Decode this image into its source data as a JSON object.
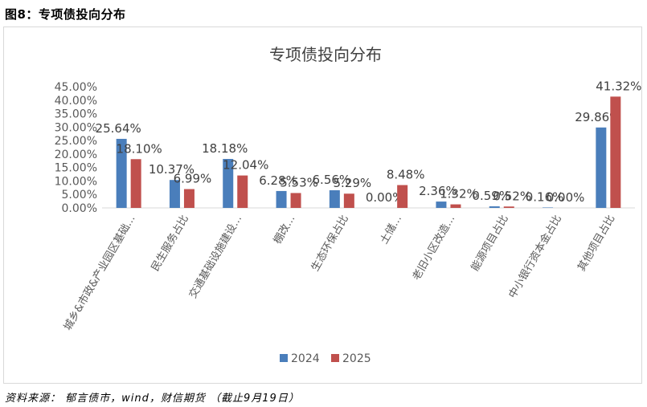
{
  "figure_title": "图8：专项债投向分布",
  "source_note": "资料来源： 郁言债市，wind，财信期货 （截止9月19日）",
  "colors": {
    "s2024": "#4a7ebb",
    "s2025": "#c0504d",
    "axis": "#d9d9d9",
    "text": "#595959"
  },
  "chart_data": {
    "type": "bar",
    "title": "专项债投向分布",
    "categories": [
      "城乡&市政&产业园区基础…",
      "民生服务占比",
      "交通基础设施建设…",
      "棚改…",
      "生态环保占比",
      "土储…",
      "老旧小区改造…",
      "能源项目占比",
      "中小银行资本金占比",
      "其他项目占比"
    ],
    "series": [
      {
        "name": "2024",
        "values": [
          25.64,
          10.37,
          18.18,
          6.28,
          6.56,
          0.0,
          2.36,
          0.59,
          0.16,
          29.86
        ],
        "labels": [
          "25.64%",
          "10.37%",
          "18.18%",
          "6.28%",
          "6.56%",
          "0.00%",
          "2.36%",
          "0.59%",
          "0.16%",
          "29.86%"
        ]
      },
      {
        "name": "2025",
        "values": [
          18.1,
          6.99,
          12.04,
          5.53,
          5.29,
          8.48,
          1.32,
          0.52,
          0.0,
          41.32
        ],
        "labels": [
          "18.10%",
          "6.99%",
          "12.04%",
          "5.53%",
          "5.29%",
          "8.48%",
          "1.32%",
          "0.52%",
          "0.00%",
          "41.32%"
        ]
      }
    ],
    "yticks": [
      "0.00%",
      "5.00%",
      "10.00%",
      "15.00%",
      "20.00%",
      "25.00%",
      "30.00%",
      "35.00%",
      "40.00%",
      "45.00%"
    ],
    "ylim": [
      0,
      45
    ],
    "legend": "bottom",
    "grid": false
  }
}
